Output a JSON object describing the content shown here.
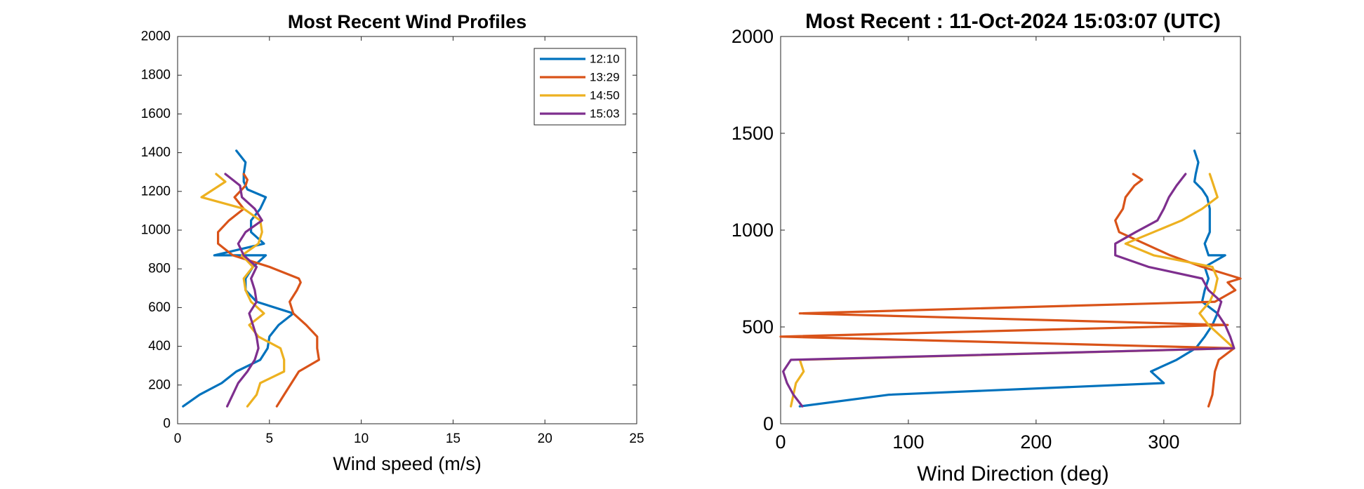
{
  "colors": {
    "12:10": "#0072BD",
    "13:29": "#D95319",
    "14:50": "#EDB120",
    "15:03": "#7E2F8E"
  },
  "chart_data": [
    {
      "type": "line",
      "title": "Most Recent Wind Profiles",
      "xlabel": "Wind speed (m/s)",
      "ylabel": "",
      "xlim": [
        0,
        25
      ],
      "ylim": [
        0,
        2000
      ],
      "xticks": [
        0,
        5,
        10,
        15,
        20,
        25
      ],
      "yticks": [
        0,
        200,
        400,
        600,
        800,
        1000,
        1200,
        1400,
        1600,
        1800,
        2000
      ],
      "grid": false,
      "legend": "top-right",
      "series": [
        {
          "name": "12:10",
          "x": [
            0.3,
            1.2,
            2.4,
            3.2,
            4.5,
            4.9,
            5.0,
            5.5,
            6.3,
            4.3,
            3.7,
            3.7,
            4.1,
            4.8,
            2.0,
            4.7,
            4.0,
            4.0,
            4.5,
            4.8,
            3.8,
            3.6,
            3.6,
            3.7,
            3.2
          ],
          "y": [
            90,
            150,
            210,
            270,
            330,
            390,
            450,
            510,
            570,
            630,
            690,
            750,
            810,
            870,
            870,
            930,
            990,
            1050,
            1110,
            1170,
            1210,
            1250,
            1290,
            1350,
            1410
          ]
        },
        {
          "name": "13:29",
          "x": [
            5.4,
            5.8,
            6.6,
            7.7,
            7.6,
            7.6,
            7.0,
            6.3,
            6.1,
            6.5,
            6.7,
            6.6,
            5.0,
            3.0,
            2.2,
            2.2,
            2.8,
            3.6,
            3.1,
            3.7,
            3.8,
            3.6
          ],
          "y": [
            90,
            150,
            270,
            330,
            390,
            450,
            510,
            570,
            630,
            690,
            730,
            750,
            810,
            870,
            930,
            990,
            1050,
            1110,
            1170,
            1230,
            1260,
            1290
          ]
        },
        {
          "name": "14:50",
          "x": [
            3.8,
            4.3,
            4.5,
            5.8,
            5.8,
            5.6,
            4.4,
            3.9,
            4.7,
            4.0,
            3.7,
            3.6,
            4.1,
            3.5,
            4.4,
            4.6,
            4.5,
            3.6,
            1.3,
            2.6,
            2.1
          ],
          "y": [
            90,
            150,
            210,
            270,
            330,
            390,
            450,
            510,
            570,
            630,
            690,
            750,
            810,
            870,
            930,
            990,
            1050,
            1110,
            1170,
            1250,
            1290
          ]
        },
        {
          "name": "15:03",
          "x": [
            2.7,
            3.0,
            3.3,
            3.8,
            4.2,
            4.4,
            4.3,
            4.1,
            3.9,
            4.3,
            4.2,
            4.0,
            4.3,
            3.6,
            3.3,
            3.7,
            4.6,
            4.2,
            3.5,
            3.4,
            2.6
          ],
          "y": [
            90,
            150,
            210,
            270,
            330,
            390,
            450,
            510,
            570,
            630,
            690,
            750,
            810,
            870,
            930,
            990,
            1050,
            1110,
            1170,
            1230,
            1290
          ]
        }
      ]
    },
    {
      "type": "line",
      "title": "Most Recent : 11-Oct-2024 15:03:07 (UTC)",
      "xlabel": "Wind Direction (deg)",
      "ylabel": "",
      "xlim": [
        0,
        360
      ],
      "ylim": [
        0,
        2000
      ],
      "xticks": [
        0,
        100,
        200,
        300
      ],
      "yticks": [
        0,
        500,
        1000,
        1500,
        2000
      ],
      "grid": false,
      "legend": "none",
      "series": [
        {
          "name": "12:10",
          "x": [
            15,
            85,
            300,
            290,
            310,
            325,
            332,
            338,
            342,
            330,
            332,
            335,
            332,
            348,
            335,
            332,
            336,
            336,
            336,
            334,
            330,
            324,
            325,
            327,
            324
          ],
          "y": [
            90,
            150,
            210,
            270,
            330,
            390,
            450,
            510,
            570,
            630,
            690,
            750,
            810,
            870,
            870,
            930,
            990,
            1050,
            1110,
            1170,
            1210,
            1250,
            1290,
            1350,
            1410
          ]
        },
        {
          "name": "13:29",
          "x": [
            335,
            338,
            340,
            343,
            355,
            0,
            350,
            15,
            340,
            356,
            350,
            360,
            330,
            305,
            285,
            265,
            262,
            268,
            270,
            277,
            283,
            276
          ],
          "y": [
            90,
            150,
            270,
            330,
            390,
            450,
            510,
            570,
            630,
            690,
            730,
            750,
            810,
            870,
            930,
            990,
            1050,
            1110,
            1170,
            1230,
            1260,
            1290
          ]
        },
        {
          "name": "14:50",
          "x": [
            8,
            10,
            12,
            18,
            15,
            355,
            345,
            335,
            328,
            336,
            340,
            342,
            338,
            292,
            270,
            292,
            314,
            330,
            342,
            338,
            336
          ],
          "y": [
            90,
            150,
            210,
            270,
            330,
            390,
            450,
            510,
            570,
            630,
            690,
            750,
            810,
            870,
            930,
            990,
            1050,
            1110,
            1170,
            1250,
            1290
          ]
        },
        {
          "name": "15:03",
          "x": [
            17,
            10,
            5,
            2,
            8,
            355,
            352,
            348,
            342,
            345,
            335,
            330,
            288,
            262,
            262,
            278,
            295,
            300,
            304,
            310,
            317
          ],
          "y": [
            90,
            150,
            210,
            270,
            330,
            390,
            450,
            510,
            570,
            630,
            690,
            750,
            810,
            870,
            930,
            990,
            1050,
            1110,
            1170,
            1230,
            1290
          ]
        }
      ]
    }
  ]
}
